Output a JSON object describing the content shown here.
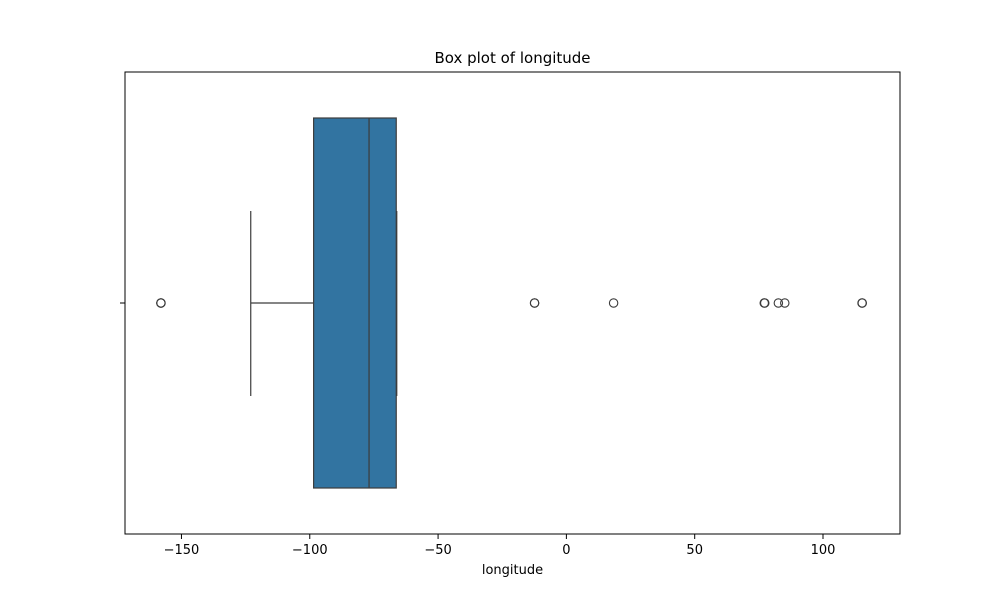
{
  "chart_data": {
    "type": "box",
    "title": "Box plot of longitude",
    "xlabel": "longitude",
    "ylabel": "",
    "orientation": "horizontal",
    "xlim": [
      -172,
      130
    ],
    "xticks": [
      -150,
      -100,
      -50,
      0,
      50,
      100
    ],
    "xtick_labels": [
      "−150",
      "−100",
      "−50",
      "0",
      "50",
      "100"
    ],
    "grid": false,
    "box": {
      "whisker_low": -123,
      "q1": -98.5,
      "median": -76.9,
      "q3": -66.3,
      "whisker_high": -66.1
    },
    "outliers": [
      -158,
      -158,
      -158,
      -12.4,
      -12.4,
      18.4,
      77.1,
      77.3,
      82.6,
      85.1,
      115.2,
      115.3
    ],
    "colors": {
      "box_fill": "#3274a1",
      "lines": "#3c3c3c",
      "outlier_edge": "#3c3c3c"
    }
  }
}
